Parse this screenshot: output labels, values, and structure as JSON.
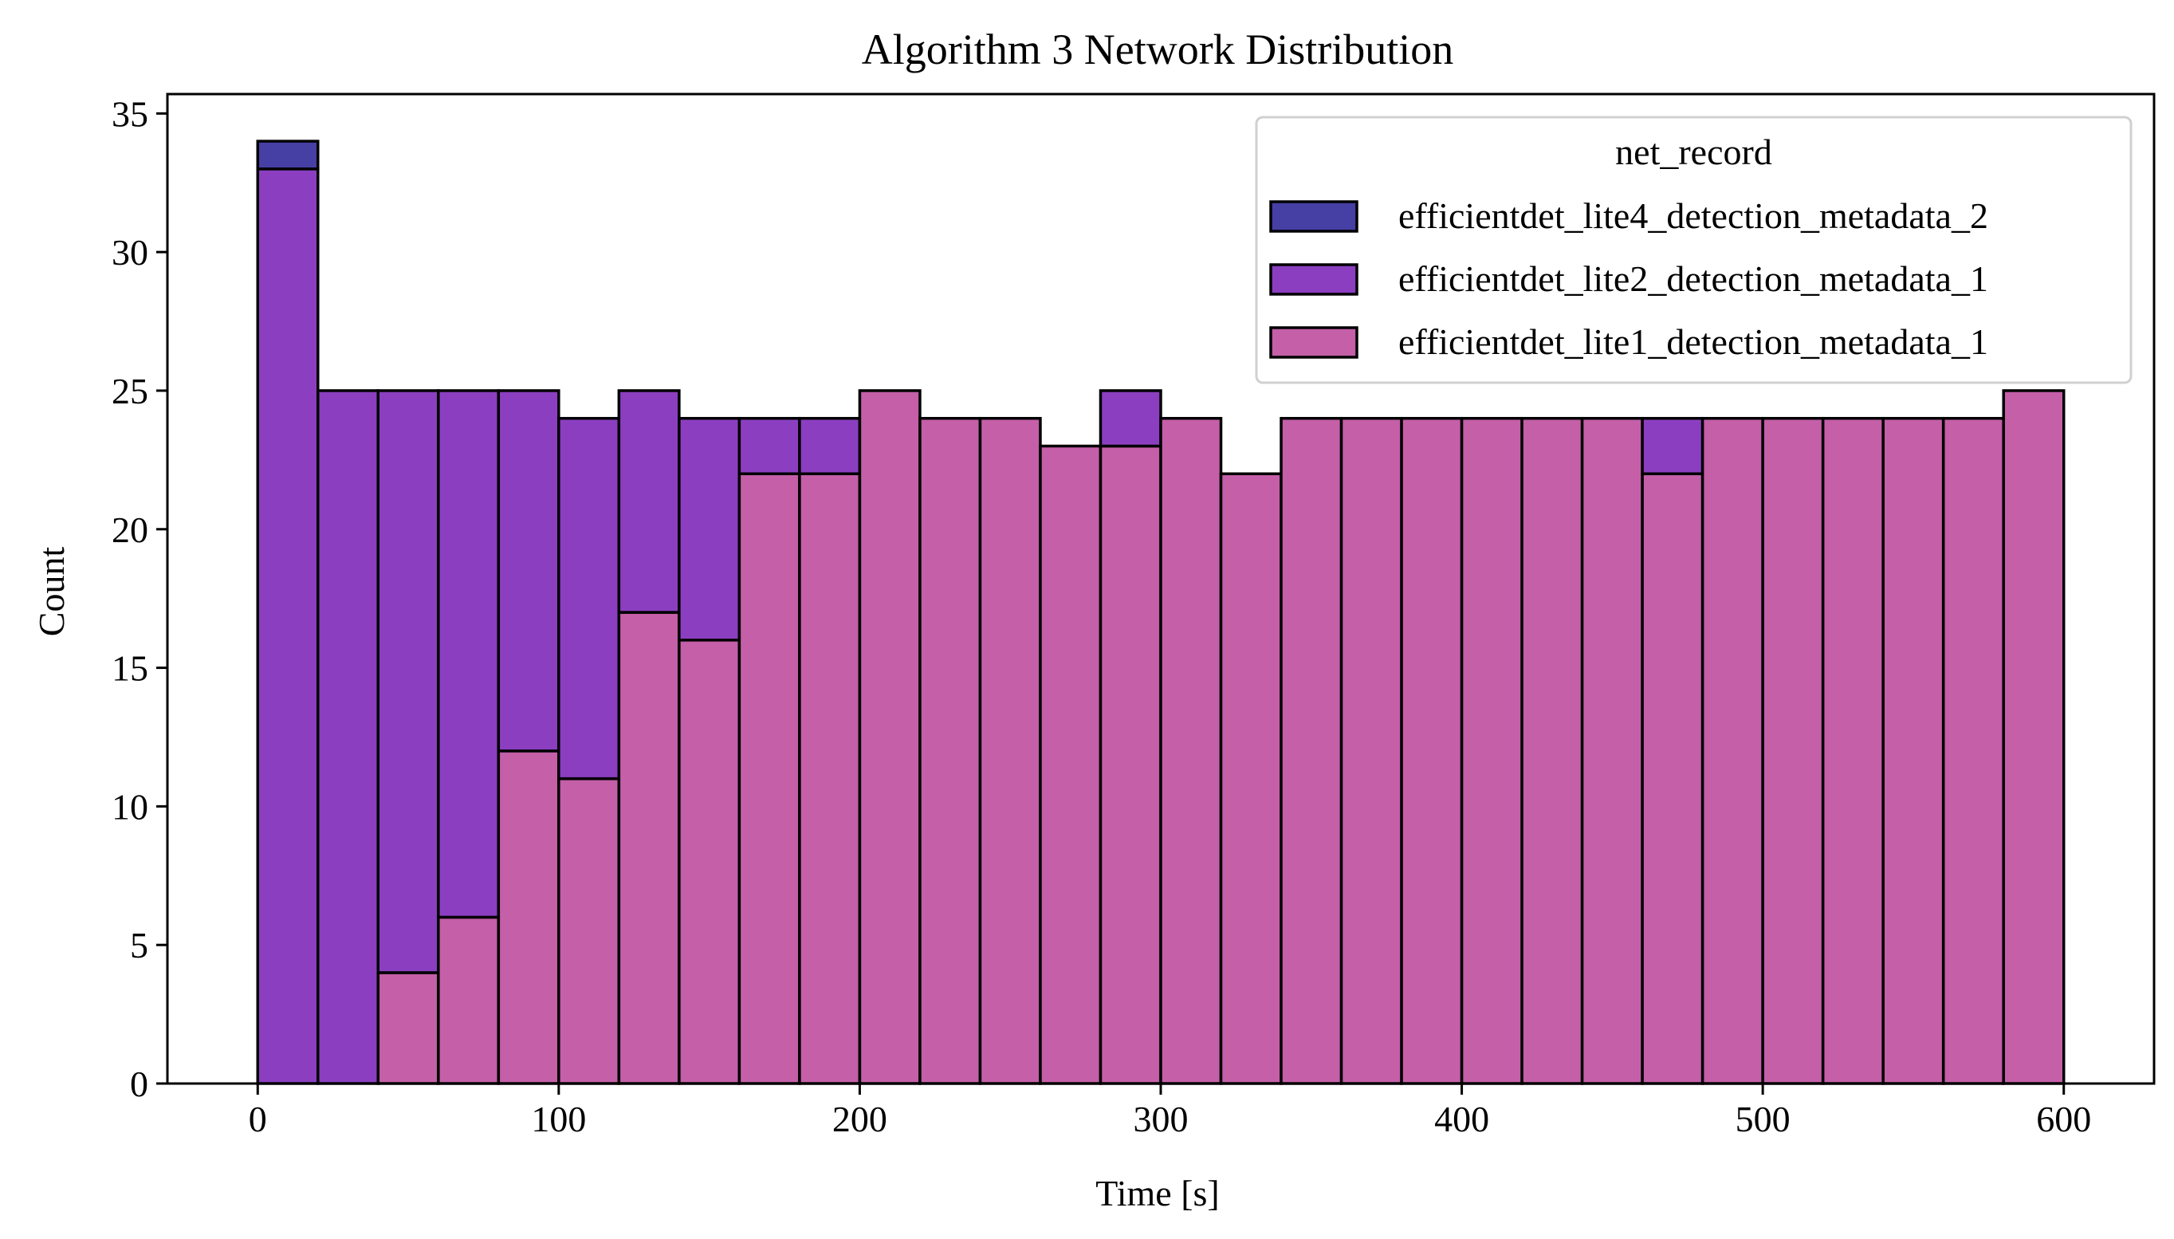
{
  "chart_data": {
    "type": "bar",
    "subtype": "stacked-histogram",
    "title": "Algorithm 3 Network Distribution",
    "xlabel": "Time [s]",
    "ylabel": "Count",
    "xlim": [
      -30,
      630
    ],
    "ylim": [
      0,
      35.7
    ],
    "xticks": [
      0,
      100,
      200,
      300,
      400,
      500,
      600
    ],
    "yticks": [
      0,
      5,
      10,
      15,
      20,
      25,
      30,
      35
    ],
    "grid": false,
    "bin_edges": [
      0,
      20,
      40,
      60,
      80,
      100,
      120,
      140,
      160,
      180,
      200,
      220,
      240,
      260,
      280,
      300,
      320,
      340,
      360,
      380,
      400,
      420,
      440,
      460,
      480,
      500,
      520,
      540,
      560,
      580,
      600
    ],
    "legend": {
      "title": "net_record",
      "placement": "upper right"
    },
    "series": [
      {
        "name": "efficientdet_lite1_detection_metadata_1",
        "color": "#c45fa8",
        "values": [
          0,
          0,
          4,
          6,
          12,
          11,
          17,
          16,
          22,
          22,
          25,
          24,
          24,
          23,
          23,
          24,
          22,
          24,
          24,
          24,
          24,
          24,
          24,
          22,
          24,
          24,
          24,
          24,
          24,
          25
        ]
      },
      {
        "name": "efficientdet_lite2_detection_metadata_1",
        "color": "#8b3fc0",
        "values": [
          33,
          25,
          21,
          19,
          13,
          13,
          8,
          8,
          2,
          2,
          0,
          0,
          0,
          0,
          2,
          0,
          0,
          0,
          0,
          0,
          0,
          0,
          0,
          2,
          0,
          0,
          0,
          0,
          0,
          0
        ]
      },
      {
        "name": "efficientdet_lite4_detection_metadata_2",
        "color": "#463fa4",
        "values": [
          1,
          0,
          0,
          0,
          0,
          0,
          0,
          0,
          0,
          0,
          0,
          0,
          0,
          0,
          0,
          0,
          0,
          0,
          0,
          0,
          0,
          0,
          0,
          0,
          0,
          0,
          0,
          0,
          0,
          0
        ]
      }
    ],
    "legend_order": [
      2,
      1,
      0
    ]
  }
}
